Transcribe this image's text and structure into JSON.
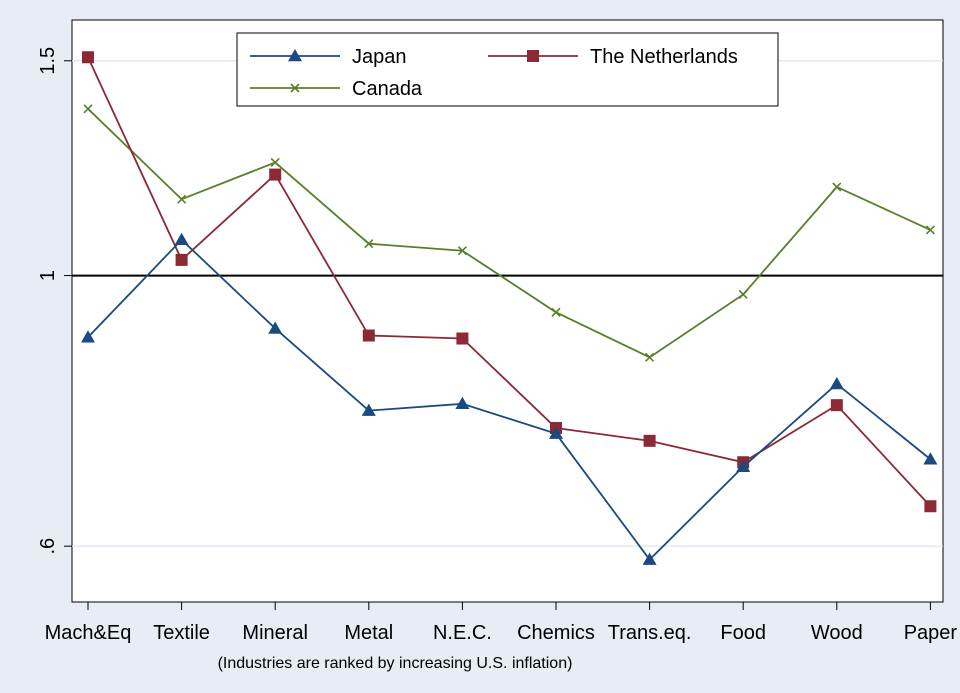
{
  "chart_data": {
    "type": "line",
    "categories": [
      "Mach&Eq",
      "Textile",
      "Mineral",
      "Metal",
      "N.E.C.",
      "Chemics",
      "Trans.eq.",
      "Food",
      "Wood",
      "Paper"
    ],
    "series": [
      {
        "name": "Japan",
        "color": "#1a4a80",
        "marker": "triangle",
        "values": [
          0.89,
          1.07,
          0.905,
          0.775,
          0.785,
          0.742,
          0.585,
          0.697,
          0.815,
          0.707
        ]
      },
      {
        "name": "The Netherlands",
        "color": "#8b2a35",
        "marker": "square",
        "values": [
          1.51,
          1.03,
          1.21,
          0.893,
          0.888,
          0.75,
          0.732,
          0.703,
          0.783,
          0.647
        ]
      },
      {
        "name": "Canada",
        "color": "#5a7f2a",
        "marker": "x",
        "values": [
          1.37,
          1.155,
          1.238,
          1.062,
          1.048,
          0.933,
          0.857,
          0.965,
          1.182,
          1.09
        ]
      }
    ],
    "yticks": [
      {
        "value": 0.6,
        "label": ".6"
      },
      {
        "value": 1.0,
        "label": "1"
      },
      {
        "value": 1.5,
        "label": "1.5"
      }
    ],
    "ylim": [
      0.54,
      1.62
    ],
    "reference_line": 1.0,
    "y_scale": "log",
    "grid": true,
    "legend_position": "top",
    "note": "(Industries are ranked by increasing U.S. inflation)"
  }
}
